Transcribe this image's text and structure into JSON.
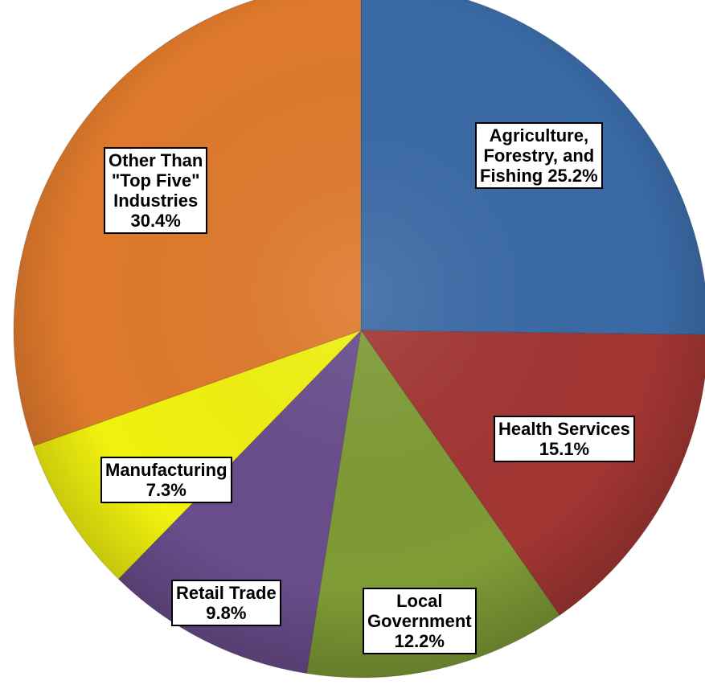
{
  "chart_data": {
    "type": "pie",
    "start_angle_deg": 0,
    "direction": "clockwise",
    "slices": [
      {
        "label": "Agriculture,\nForestry, and\nFishing 25.2%",
        "name": "Agriculture, Forestry, and Fishing",
        "value": 25.2,
        "color": "#3a6aa6"
      },
      {
        "label": "Health Services\n15.1%",
        "name": "Health Services",
        "value": 15.1,
        "color": "#a33633"
      },
      {
        "label": "Local\nGovernment\n12.2%",
        "name": "Local Government",
        "value": 12.2,
        "color": "#7f9c36"
      },
      {
        "label": "Retail Trade\n9.8%",
        "name": "Retail Trade",
        "value": 9.8,
        "color": "#6a4d8c"
      },
      {
        "label": "Manufacturing\n7.3%",
        "name": "Manufacturing",
        "value": 7.3,
        "color": "#f2f20f"
      },
      {
        "label": "Other Than\n\"Top Five\"\nIndustries\n30.4%",
        "name": "Other Than \"Top Five\" Industries",
        "value": 30.4,
        "color": "#e07a2c"
      }
    ]
  }
}
